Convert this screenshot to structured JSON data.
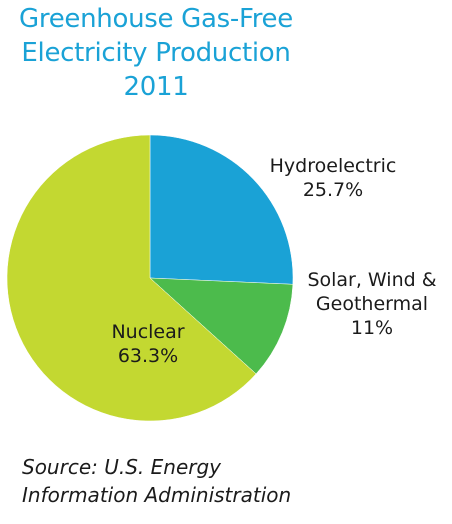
{
  "chart_data": {
    "type": "pie",
    "title": [
      "Greenhouse Gas-Free",
      "Electricity Production",
      "2011"
    ],
    "slices": [
      {
        "label": "Hydroelectric",
        "value_text": "25.7%",
        "value": 25.7,
        "color": "#1aa2d6"
      },
      {
        "label": "Solar, Wind &",
        "label2": "Geothermal",
        "value_text": "11%",
        "value": 11,
        "color": "#4cbb4c"
      },
      {
        "label": "Nuclear",
        "value_text": "63.3%",
        "value": 63.3,
        "color": "#c3d831"
      }
    ],
    "start_angle_deg": 0,
    "direction": "clockwise",
    "legend": "none"
  },
  "source": [
    "Source: U.S. Energy",
    "Information Administration"
  ]
}
